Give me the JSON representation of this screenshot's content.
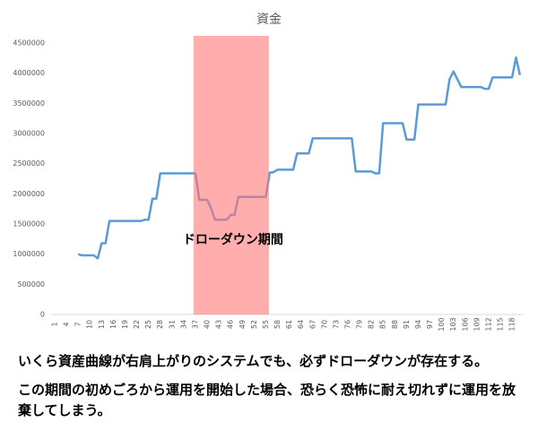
{
  "chart_data": {
    "type": "line",
    "title": "資金",
    "categories": [
      "1",
      null,
      null,
      "4",
      null,
      null,
      "7",
      null,
      null,
      "10",
      null,
      null,
      "13",
      null,
      null,
      "16",
      null,
      null,
      "19",
      null,
      null,
      "22",
      null,
      null,
      "25",
      null,
      null,
      "28",
      null,
      null,
      "31",
      null,
      null,
      "34",
      null,
      null,
      "37",
      null,
      null,
      "40",
      null,
      null,
      "43",
      null,
      null,
      "46",
      null,
      null,
      "49",
      null,
      null,
      "52",
      null,
      null,
      "55",
      null,
      null,
      "58",
      null,
      null,
      "61",
      null,
      null,
      "64",
      null,
      null,
      "67",
      null,
      null,
      "70",
      null,
      null,
      "73",
      null,
      null,
      "76",
      null,
      null,
      "79",
      null,
      null,
      "82",
      null,
      null,
      "85",
      null,
      null,
      "88",
      null,
      null,
      "91",
      null,
      null,
      "94",
      null,
      null,
      "97",
      null,
      null,
      "100",
      null,
      null,
      "103",
      null,
      null,
      "106",
      null,
      null,
      "109",
      null,
      null,
      "112",
      null,
      null,
      "115",
      null,
      null,
      "118",
      null,
      null
    ],
    "series": [
      {
        "name": "資金",
        "color": "#5b9bd5",
        "values": [
          null,
          null,
          null,
          null,
          null,
          null,
          1000000,
          980000,
          980000,
          980000,
          980000,
          930000,
          1180000,
          1180000,
          1550000,
          1550000,
          1550000,
          1550000,
          1550000,
          1550000,
          1550000,
          1550000,
          1550000,
          1570000,
          1570000,
          1920000,
          1920000,
          2340000,
          2340000,
          2340000,
          2340000,
          2340000,
          2340000,
          2340000,
          2340000,
          2340000,
          2340000,
          1900000,
          1900000,
          1900000,
          1760000,
          1570000,
          1570000,
          1570000,
          1570000,
          1650000,
          1650000,
          1950000,
          1950000,
          1950000,
          1950000,
          1950000,
          1950000,
          1950000,
          1950000,
          2350000,
          2360000,
          2400000,
          2400000,
          2400000,
          2400000,
          2400000,
          2670000,
          2670000,
          2670000,
          2670000,
          2920000,
          2920000,
          2920000,
          2920000,
          2920000,
          2920000,
          2920000,
          2920000,
          2920000,
          2920000,
          2920000,
          2370000,
          2370000,
          2370000,
          2370000,
          2370000,
          2340000,
          2340000,
          3170000,
          3170000,
          3170000,
          3170000,
          3170000,
          3170000,
          2900000,
          2900000,
          2900000,
          3480000,
          3480000,
          3480000,
          3480000,
          3480000,
          3480000,
          3480000,
          3480000,
          3900000,
          4030000,
          3900000,
          3770000,
          3770000,
          3770000,
          3770000,
          3770000,
          3770000,
          3740000,
          3740000,
          3930000,
          3930000,
          3930000,
          3930000,
          3930000,
          3930000,
          4260000,
          3970000
        ]
      }
    ],
    "ylim": [
      0,
      4500000
    ],
    "yticks": [
      0,
      500000,
      1000000,
      1500000,
      2000000,
      2500000,
      3000000,
      3500000,
      4000000,
      4500000
    ],
    "grid": false,
    "highlight": {
      "label": "ドローダウン期間",
      "from": 36.5,
      "to": 55.8,
      "color": "#ff7777"
    }
  },
  "notes": [
    "いくら資産曲線が右肩上がりのシステムでも、必ずドローダウンが存在する。",
    "この期間の初めごろから運用を開始した場合、恐らく恐怖に耐え切れずに運用を放棄してしまう。"
  ]
}
